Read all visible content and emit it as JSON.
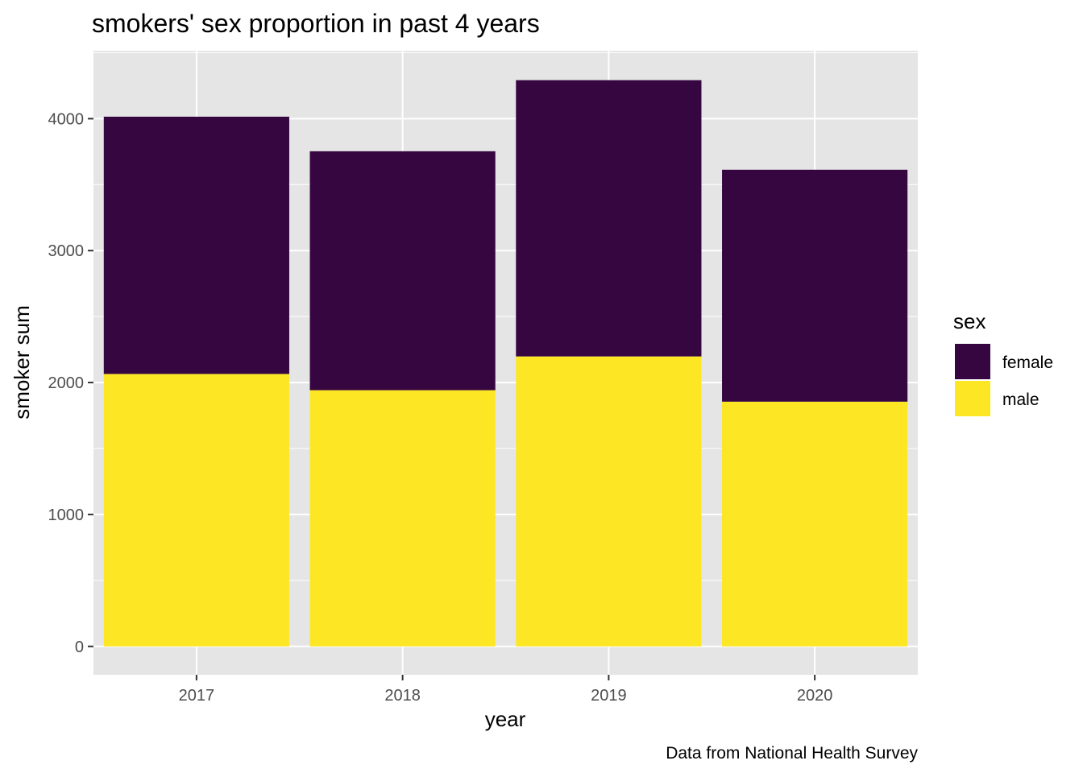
{
  "chart_data": {
    "type": "bar",
    "stacked": true,
    "title": "smokers' sex proportion in  past 4 years",
    "xlabel": "year",
    "ylabel": "smoker sum",
    "caption": "Data from National Health Survey",
    "categories": [
      "2017",
      "2018",
      "2019",
      "2020"
    ],
    "series": [
      {
        "name": "male",
        "color": "#FDE725",
        "values": [
          2065,
          1942,
          2198,
          1855
        ]
      },
      {
        "name": "female",
        "color": "#360641",
        "values": [
          1950,
          1811,
          2094,
          1758
        ]
      }
    ],
    "ylim": [
      -215,
      4515
    ],
    "yticks": [
      0,
      1000,
      2000,
      3000,
      4000
    ],
    "grid": true,
    "legend": {
      "title": "sex",
      "position": "right",
      "items": [
        {
          "label": "female",
          "color": "#360641"
        },
        {
          "label": "male",
          "color": "#FDE725"
        }
      ]
    },
    "panel_background": "#E5E5E5",
    "grid_color": "#FFFFFF"
  }
}
